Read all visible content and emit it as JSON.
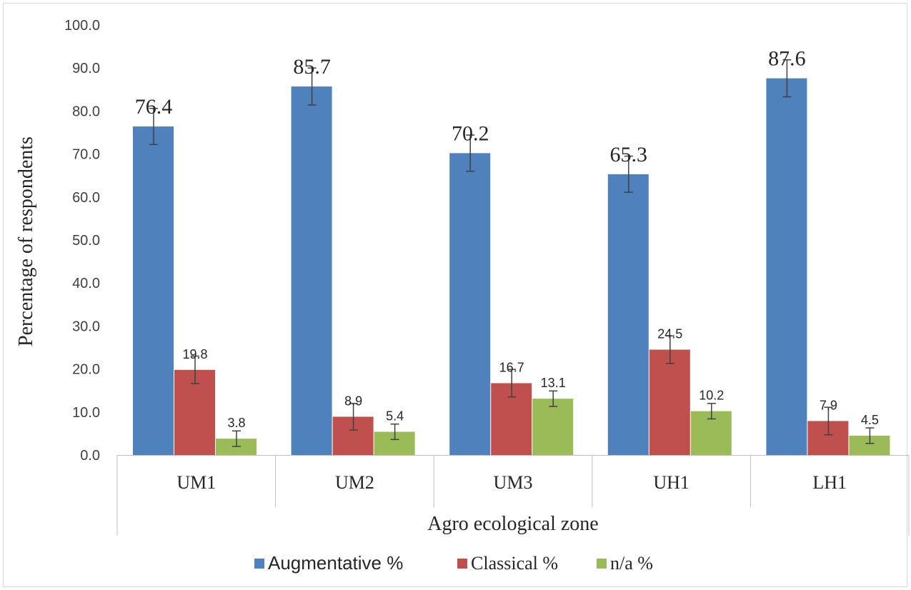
{
  "chart_data": {
    "type": "bar",
    "categories": [
      "UM1",
      "UM2",
      "UM3",
      "UH1",
      "LH1"
    ],
    "series": [
      {
        "name": "Augmentative %",
        "values": [
          76.4,
          85.7,
          70.2,
          65.3,
          87.6
        ],
        "labels": [
          "76.4",
          "85.7",
          "70.2",
          "65.3",
          "87.6"
        ],
        "color": "#4f81bd"
      },
      {
        "name": "Classical %",
        "values": [
          19.8,
          8.9,
          16.7,
          24.5,
          7.9
        ],
        "labels": [
          "19.8",
          "8.9",
          "16.7",
          "24.5",
          "7.9"
        ],
        "color": "#c0504d"
      },
      {
        "name": "n/a %",
        "values": [
          3.8,
          5.4,
          13.1,
          10.2,
          4.5
        ],
        "labels": [
          "3.8",
          "5.4",
          "13.1",
          "10.2",
          "4.5"
        ],
        "color": "#9bbb59"
      }
    ],
    "error_bars": [
      [
        4.2,
        4.3,
        4.2,
        4.2,
        4.3
      ],
      [
        3.2,
        3.1,
        3.2,
        3.2,
        3.2
      ],
      [
        1.8,
        1.8,
        1.8,
        1.8,
        1.8
      ]
    ],
    "xlabel": "Agro ecological zone",
    "ylabel": "Percentage of respondents",
    "ylim": [
      0,
      100
    ],
    "yticks": [
      "0.0",
      "10.0",
      "20.0",
      "30.0",
      "40.0",
      "50.0",
      "60.0",
      "70.0",
      "80.0",
      "90.0",
      "100.0"
    ],
    "grid": false,
    "legend_position": "bottom"
  }
}
